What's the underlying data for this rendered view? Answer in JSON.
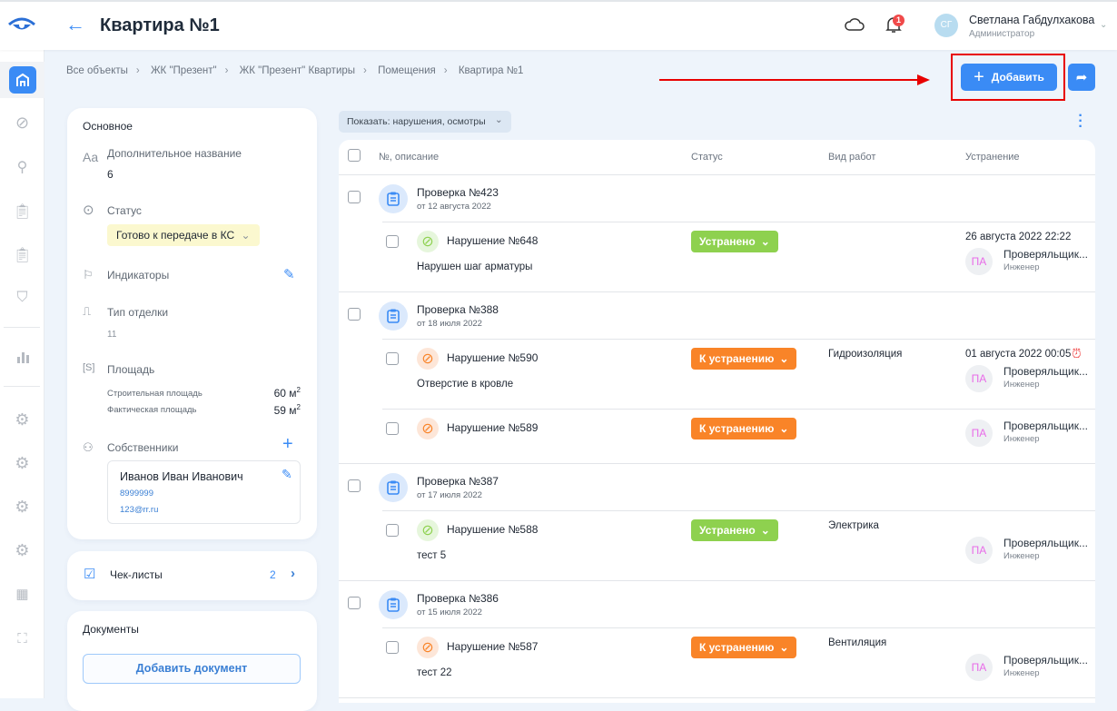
{
  "header": {
    "title": "Квартира №1",
    "back_icon": "arrow-left-icon",
    "user": {
      "initials": "СГ",
      "name": "Светлана Габдулхакова",
      "role": "Администратор"
    },
    "notifications": "1"
  },
  "breadcrumbs": [
    "Все объекты",
    "ЖК \"Презент\"",
    "ЖК \"Презент\" Квартиры",
    "Помещения",
    "Квартира №1"
  ],
  "toolbar": {
    "add_label": "Добавить"
  },
  "colors": {
    "accent": "#3a8bf5",
    "fixed": "#8ed14f",
    "to_fix": "#f98428",
    "annotation": "#e80000"
  },
  "info": {
    "section": "Основное",
    "extra_name_label": "Дополнительное название",
    "extra_name_value": "6",
    "status_label": "Статус",
    "status_value": "Готово к передаче в КС",
    "indicators_label": "Индикаторы",
    "finish_label": "Тип отделки",
    "finish_value": "11",
    "area_label": "Площадь",
    "build_area_label": "Строительная площадь",
    "build_area_value": "60 м",
    "actual_area_label": "Фактическая площадь",
    "actual_area_value": "59 м",
    "sup": "2",
    "owners_label": "Собственники",
    "owner": {
      "name": "Иванов Иван Иванович",
      "phone": "8999999",
      "email": "123@rr.ru"
    }
  },
  "checklists": {
    "label": "Чек-листы",
    "count": "2"
  },
  "documents": {
    "label": "Документы",
    "add_label": "Добавить документ"
  },
  "filter": {
    "label": "Показать: нарушения, осмотры"
  },
  "table": {
    "columns": [
      "№, описание",
      "Статус",
      "Вид работ",
      "Устранение"
    ],
    "groups": [
      {
        "title": "Проверка №423",
        "date": "от 12 августа 2022",
        "violations": [
          {
            "title": "Нарушение №648",
            "desc": "Нарушен шаг арматуры",
            "status": "Устранено",
            "kind": "fixed",
            "work": "",
            "deadline": "26 августа 2022 22:22",
            "overdue": false,
            "assignee": {
              "initials": "ПА",
              "name": "Проверяльщик...",
              "role": "Инженер"
            }
          }
        ]
      },
      {
        "title": "Проверка №388",
        "date": "от 18 июля 2022",
        "violations": [
          {
            "title": "Нарушение №590",
            "desc": "Отверстие в кровле",
            "status": "К устранению",
            "kind": "to_fix",
            "work": "Гидроизоляция",
            "deadline": "01 августа 2022 00:05",
            "overdue": true,
            "assignee": {
              "initials": "ПА",
              "name": "Проверяльщик...",
              "role": "Инженер"
            }
          },
          {
            "title": "Нарушение №589",
            "desc": "",
            "status": "К устранению",
            "kind": "to_fix",
            "work": "",
            "deadline": "",
            "overdue": false,
            "assignee": {
              "initials": "ПА",
              "name": "Проверяльщик...",
              "role": "Инженер"
            }
          }
        ]
      },
      {
        "title": "Проверка №387",
        "date": "от 17 июля 2022",
        "violations": [
          {
            "title": "Нарушение №588",
            "desc": "тест 5",
            "status": "Устранено",
            "kind": "fixed",
            "work": "Электрика",
            "deadline": "",
            "overdue": false,
            "assignee": {
              "initials": "ПА",
              "name": "Проверяльщик...",
              "role": "Инженер"
            }
          }
        ]
      },
      {
        "title": "Проверка №386",
        "date": "от 15 июля 2022",
        "violations": [
          {
            "title": "Нарушение №587",
            "desc": "тест 22",
            "status": "К устранению",
            "kind": "to_fix",
            "work": "Вентиляция",
            "deadline": "",
            "overdue": false,
            "assignee": {
              "initials": "ПА",
              "name": "Проверяльщик...",
              "role": "Инженер"
            }
          }
        ]
      }
    ]
  }
}
